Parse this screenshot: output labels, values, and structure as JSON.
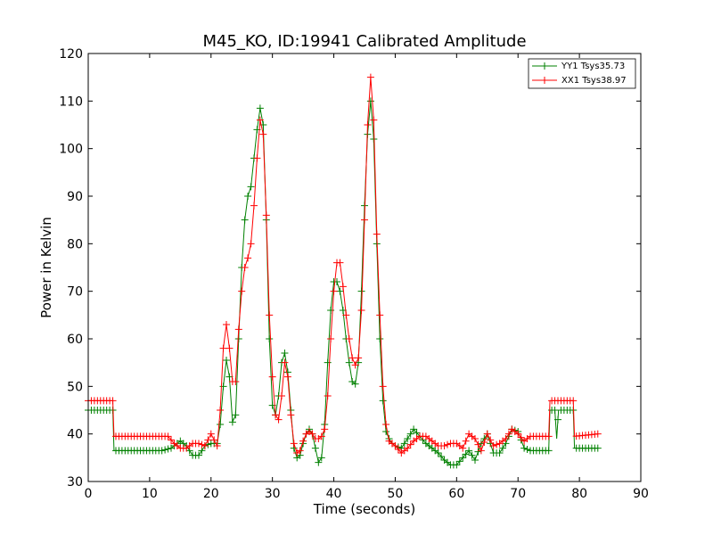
{
  "chart_data": {
    "type": "line",
    "title": "M45_KO, ID:19941 Calibrated Amplitude",
    "xlabel": "Time (seconds)",
    "ylabel": "Power in Kelvin",
    "xlim": [
      0,
      90
    ],
    "ylim": [
      30,
      120
    ],
    "xticks": [
      "0",
      "10",
      "20",
      "30",
      "40",
      "50",
      "60",
      "70",
      "80",
      "90"
    ],
    "yticks": [
      "30",
      "40",
      "50",
      "60",
      "70",
      "80",
      "90",
      "100",
      "110",
      "120"
    ],
    "grid": false,
    "legend_position": "top-right",
    "series": [
      {
        "name": "YY1 Tsys35.73",
        "color": "#008000",
        "marker": "+",
        "points": [
          [
            0,
            45
          ],
          [
            4,
            45
          ],
          [
            4.2,
            36.5
          ],
          [
            12,
            36.5
          ],
          [
            13.5,
            37
          ],
          [
            15,
            38.5
          ],
          [
            16,
            37.5
          ],
          [
            17,
            35.5
          ],
          [
            18,
            35.5
          ],
          [
            19,
            37.5
          ],
          [
            20,
            38
          ],
          [
            21,
            38
          ],
          [
            21.5,
            42
          ],
          [
            22,
            50
          ],
          [
            22.5,
            55.5
          ],
          [
            23,
            52
          ],
          [
            23.5,
            42.5
          ],
          [
            24,
            44
          ],
          [
            24.5,
            60
          ],
          [
            25,
            75
          ],
          [
            25.5,
            85
          ],
          [
            26,
            90
          ],
          [
            26.5,
            92
          ],
          [
            27,
            98
          ],
          [
            27.5,
            104
          ],
          [
            28,
            108.5
          ],
          [
            28.5,
            105
          ],
          [
            29,
            85
          ],
          [
            29.5,
            60
          ],
          [
            30,
            46
          ],
          [
            30.5,
            44
          ],
          [
            31,
            48
          ],
          [
            31.5,
            55
          ],
          [
            32,
            57
          ],
          [
            32.5,
            53
          ],
          [
            33,
            45
          ],
          [
            33.5,
            37
          ],
          [
            34,
            35
          ],
          [
            34.5,
            35.5
          ],
          [
            35,
            38
          ],
          [
            35.5,
            40
          ],
          [
            36,
            41
          ],
          [
            36.5,
            40
          ],
          [
            37,
            37
          ],
          [
            37.5,
            34
          ],
          [
            38,
            35
          ],
          [
            38.5,
            42
          ],
          [
            39,
            55
          ],
          [
            39.5,
            66
          ],
          [
            40,
            72
          ],
          [
            40.5,
            72
          ],
          [
            41,
            70
          ],
          [
            41.5,
            66
          ],
          [
            42,
            60
          ],
          [
            42.5,
            55
          ],
          [
            43,
            51
          ],
          [
            43.5,
            50.5
          ],
          [
            44,
            55
          ],
          [
            44.5,
            70
          ],
          [
            45,
            88
          ],
          [
            45.5,
            103
          ],
          [
            46,
            110
          ],
          [
            46.5,
            102
          ],
          [
            47,
            80
          ],
          [
            47.5,
            60
          ],
          [
            48,
            47
          ],
          [
            48.5,
            40.5
          ],
          [
            49,
            39
          ],
          [
            49.5,
            38
          ],
          [
            50,
            37.5
          ],
          [
            51,
            37
          ],
          [
            52,
            39
          ],
          [
            53,
            41
          ],
          [
            54,
            39.5
          ],
          [
            55,
            38
          ],
          [
            56,
            37
          ],
          [
            57,
            36
          ],
          [
            58,
            34.5
          ],
          [
            59,
            33.5
          ],
          [
            60,
            33.5
          ],
          [
            61,
            35
          ],
          [
            62,
            36.5
          ],
          [
            63,
            34.5
          ],
          [
            64,
            38
          ],
          [
            65,
            40
          ],
          [
            66,
            36
          ],
          [
            67,
            36
          ],
          [
            68,
            38
          ],
          [
            69,
            41
          ],
          [
            70,
            40.5
          ],
          [
            71,
            37
          ],
          [
            72,
            36.5
          ],
          [
            75,
            36.5
          ],
          [
            75.2,
            45
          ],
          [
            76,
            45
          ],
          [
            76.3,
            39
          ],
          [
            76.6,
            45
          ],
          [
            79,
            45
          ],
          [
            79.2,
            37
          ],
          [
            83,
            37
          ]
        ]
      },
      {
        "name": "XX1 Tsys38.97",
        "color": "#ff0000",
        "marker": "+",
        "points": [
          [
            0,
            47
          ],
          [
            4,
            47
          ],
          [
            4.2,
            39.5
          ],
          [
            13,
            39.5
          ],
          [
            14,
            38
          ],
          [
            15,
            37
          ],
          [
            16,
            37
          ],
          [
            17,
            38
          ],
          [
            18,
            38
          ],
          [
            19,
            37.5
          ],
          [
            20,
            40
          ],
          [
            21,
            37.5
          ],
          [
            21.5,
            45
          ],
          [
            22,
            58
          ],
          [
            22.5,
            63
          ],
          [
            23,
            58
          ],
          [
            23.5,
            51
          ],
          [
            24,
            51
          ],
          [
            24.5,
            62
          ],
          [
            25,
            70
          ],
          [
            25.5,
            75
          ],
          [
            26,
            77
          ],
          [
            26.5,
            80
          ],
          [
            27,
            88
          ],
          [
            27.5,
            98
          ],
          [
            28,
            106
          ],
          [
            28.5,
            103
          ],
          [
            29,
            86
          ],
          [
            29.5,
            65
          ],
          [
            30,
            52
          ],
          [
            30.5,
            44
          ],
          [
            31,
            43
          ],
          [
            31.5,
            48
          ],
          [
            32,
            55
          ],
          [
            32.5,
            52
          ],
          [
            33,
            44
          ],
          [
            33.5,
            38
          ],
          [
            34,
            36
          ],
          [
            34.5,
            36.5
          ],
          [
            35,
            38.5
          ],
          [
            35.5,
            40
          ],
          [
            36,
            40.5
          ],
          [
            36.5,
            40
          ],
          [
            37,
            39
          ],
          [
            37.5,
            39
          ],
          [
            38,
            39.5
          ],
          [
            38.5,
            41
          ],
          [
            39,
            48
          ],
          [
            39.5,
            60
          ],
          [
            40,
            70
          ],
          [
            40.5,
            76
          ],
          [
            41,
            76
          ],
          [
            41.5,
            71
          ],
          [
            42,
            65
          ],
          [
            42.5,
            60
          ],
          [
            43,
            56
          ],
          [
            43.5,
            54.5
          ],
          [
            44,
            56
          ],
          [
            44.5,
            66
          ],
          [
            45,
            85
          ],
          [
            45.5,
            105
          ],
          [
            46,
            115
          ],
          [
            46.5,
            106
          ],
          [
            47,
            82
          ],
          [
            47.5,
            65
          ],
          [
            48,
            50
          ],
          [
            48.5,
            42
          ],
          [
            49,
            38.5
          ],
          [
            49.5,
            38
          ],
          [
            50,
            37.5
          ],
          [
            51,
            36
          ],
          [
            52,
            37
          ],
          [
            53,
            38.5
          ],
          [
            54,
            39.5
          ],
          [
            55,
            39.5
          ],
          [
            56,
            38.5
          ],
          [
            57,
            37.5
          ],
          [
            58,
            37.5
          ],
          [
            59,
            38
          ],
          [
            60,
            38
          ],
          [
            61,
            37
          ],
          [
            62,
            40
          ],
          [
            63,
            39
          ],
          [
            64,
            36.5
          ],
          [
            65,
            40
          ],
          [
            66,
            37.5
          ],
          [
            67,
            38
          ],
          [
            68,
            39
          ],
          [
            69,
            41
          ],
          [
            70,
            40
          ],
          [
            71,
            38.5
          ],
          [
            72,
            39.5
          ],
          [
            75,
            39.5
          ],
          [
            75.2,
            47
          ],
          [
            79,
            47
          ],
          [
            79.2,
            39.5
          ],
          [
            83,
            40
          ]
        ]
      }
    ]
  }
}
